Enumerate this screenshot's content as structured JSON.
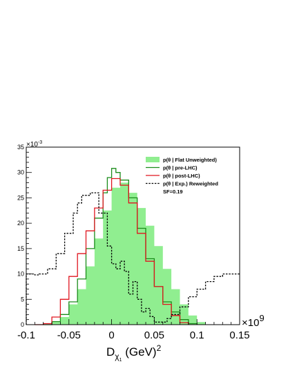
{
  "chart_data": {
    "type": "line",
    "title": "",
    "xlabel": {
      "base": "D",
      "sub": "χ",
      "subsub": "1",
      "unit": " (GeV)",
      "sup": "2"
    },
    "x_multiplier": "×10",
    "x_multiplier_exp": "9",
    "y_multiplier": "×10",
    "y_multiplier_exp": "-3",
    "xlim": [
      -0.1,
      0.15
    ],
    "ylim": [
      0,
      35
    ],
    "xticks": [
      "-0.1",
      "-0.05",
      "0",
      "0.05",
      "0.1",
      "0.15"
    ],
    "yticks": [
      "0",
      "5",
      "10",
      "15",
      "20",
      "25",
      "30",
      "35"
    ],
    "grid": false,
    "legend_position": "top-right",
    "sf_label": "SF=0.19",
    "series": [
      {
        "name": "p(θ | Flat Unweighted)",
        "style": "filled",
        "color": "#90ee90",
        "x": [
          -0.08,
          -0.07,
          -0.06,
          -0.05,
          -0.04,
          -0.03,
          -0.02,
          -0.01,
          0,
          0.01,
          0.02,
          0.03,
          0.04,
          0.05,
          0.06,
          0.07,
          0.08,
          0.09,
          0.1,
          0.11
        ],
        "y": [
          0,
          0.5,
          1.5,
          4,
          7,
          11.5,
          17,
          22.5,
          27,
          28,
          26,
          23,
          19.5,
          15.5,
          11,
          7,
          4,
          1.8,
          0.5,
          0
        ]
      },
      {
        "name": "p(θ | pre-LHC)",
        "style": "solid",
        "color": "#1a8c1a",
        "x": [
          -0.08,
          -0.07,
          -0.06,
          -0.05,
          -0.04,
          -0.03,
          -0.02,
          -0.01,
          -0.005,
          0,
          0.005,
          0.01,
          0.02,
          0.03,
          0.04,
          0.05,
          0.06,
          0.07,
          0.08,
          0.09,
          0.1
        ],
        "y": [
          0,
          0.6,
          2,
          4.5,
          9,
          15,
          21,
          26,
          29,
          30.8,
          30,
          28.5,
          25,
          19,
          13,
          7.5,
          4.5,
          2.5,
          1,
          0.2,
          0
        ]
      },
      {
        "name": "p(θ | post-LHC)",
        "style": "solid",
        "color": "#e0141e",
        "x": [
          -0.09,
          -0.08,
          -0.07,
          -0.06,
          -0.05,
          -0.04,
          -0.03,
          -0.02,
          -0.01,
          0,
          0.01,
          0.02,
          0.03,
          0.04,
          0.05,
          0.06,
          0.07,
          0.08,
          0.09
        ],
        "y": [
          0,
          0.2,
          1.5,
          5,
          9.5,
          14,
          18.5,
          23,
          26.5,
          28.8,
          27.5,
          24,
          18,
          12.5,
          7.5,
          4,
          1.8,
          0.4,
          0
        ]
      },
      {
        "name": "p(θ | Exp.) Reweighted",
        "style": "dashed",
        "color": "#000000",
        "x": [
          -0.1,
          -0.09,
          -0.085,
          -0.075,
          -0.065,
          -0.055,
          -0.045,
          -0.04,
          -0.035,
          -0.025,
          -0.015,
          -0.005,
          0,
          0.005,
          0.01,
          0.015,
          0.02,
          0.025,
          0.03,
          0.035,
          0.04,
          0.045,
          0.05,
          0.055,
          0.06,
          0.065,
          0.07,
          0.08,
          0.09,
          0.1,
          0.11,
          0.12,
          0.13,
          0.14,
          0.15
        ],
        "y": [
          10,
          9.8,
          10,
          11,
          14,
          18,
          22,
          24,
          25.5,
          26,
          22,
          15.5,
          12,
          11,
          12.5,
          10.5,
          6,
          8.5,
          5,
          2.5,
          3.2,
          1.6,
          0.5,
          0.5,
          0.5,
          1.2,
          2,
          3.5,
          5.5,
          7,
          8.5,
          9.5,
          10,
          10,
          10
        ]
      }
    ]
  }
}
